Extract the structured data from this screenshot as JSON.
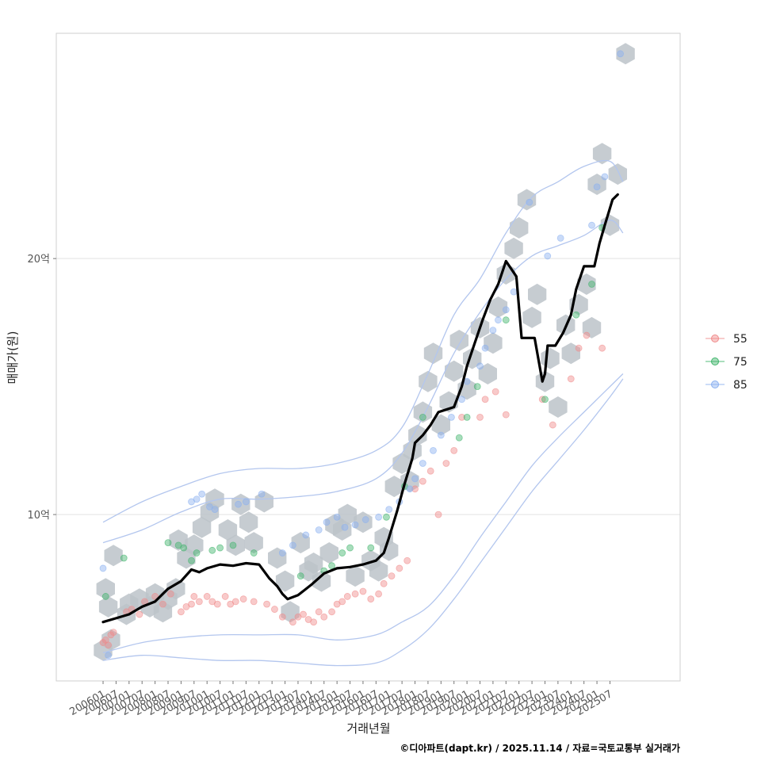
{
  "chart_data": {
    "type": "scatter",
    "title": "",
    "xlabel": "거래년월",
    "ylabel": "매매가(원)",
    "caption": "©디아파트(dapt.kr) / 2025.11.14 / 자료=국토교통부 실거래가",
    "x_tick_labels": [
      "200601",
      "200607",
      "200701",
      "200707",
      "200801",
      "200807",
      "200901",
      "200907",
      "201001",
      "201007",
      "201101",
      "201107",
      "201201",
      "201207",
      "201301",
      "201307",
      "201401",
      "201407",
      "201501",
      "201507",
      "201601",
      "201607",
      "201701",
      "201707",
      "201801",
      "201807",
      "201901",
      "201907",
      "202001",
      "202007",
      "202101",
      "202107",
      "202201",
      "202207",
      "202301",
      "202307",
      "202401",
      "202407",
      "202501",
      "202507"
    ],
    "y_ticks": [
      {
        "value": 10,
        "label": "10억"
      },
      {
        "value": 20,
        "label": "20억"
      }
    ],
    "ylim": [
      3.5,
      28.8
    ],
    "xlim": [
      2004.2,
      2028.2
    ],
    "grid": "horizontal",
    "legend": {
      "position": "right",
      "items": [
        {
          "label": "55",
          "color": "#f08a8a"
        },
        {
          "label": "75",
          "color": "#3fb46a"
        },
        {
          "label": "85",
          "color": "#8ab0f0"
        }
      ]
    },
    "colors": {
      "hex": "#bcc3c9",
      "trend": "#000000",
      "contour": "#b3c6ee",
      "grid": "#e3e3e3",
      "frame": "#cfcfcf"
    },
    "trend_line": {
      "name": "median price",
      "x": [
        2006.0,
        2006.5,
        2007.0,
        2007.5,
        2008.0,
        2008.5,
        2009.0,
        2009.4,
        2009.7,
        2010.0,
        2010.5,
        2011.0,
        2011.5,
        2012.0,
        2012.4,
        2012.7,
        2012.9,
        2013.1,
        2013.5,
        2014.0,
        2014.5,
        2015.0,
        2015.5,
        2016.0,
        2016.5,
        2016.8,
        2017.0,
        2017.3,
        2017.6,
        2017.9,
        2018.0,
        2018.3,
        2018.6,
        2018.9,
        2019.2,
        2019.5,
        2019.8,
        2020.0,
        2020.3,
        2020.6,
        2020.9,
        2021.2,
        2021.5,
        2021.9,
        2022.1,
        2022.3,
        2022.6,
        2022.9,
        2023.0,
        2023.1,
        2023.4,
        2023.7,
        2024.0,
        2024.2,
        2024.5,
        2024.9,
        2025.1,
        2025.3,
        2025.6,
        2025.8
      ],
      "y": [
        5.8,
        5.95,
        6.1,
        6.4,
        6.6,
        7.1,
        7.4,
        7.85,
        7.75,
        7.9,
        8.05,
        8.0,
        8.1,
        8.05,
        7.5,
        7.2,
        6.9,
        6.7,
        6.85,
        7.25,
        7.7,
        7.9,
        7.95,
        8.05,
        8.2,
        8.5,
        9.1,
        10.1,
        11.2,
        12.2,
        12.8,
        13.1,
        13.5,
        14.0,
        14.1,
        14.2,
        15.0,
        15.8,
        16.7,
        17.6,
        18.4,
        19.0,
        19.9,
        19.3,
        16.9,
        16.9,
        16.9,
        15.2,
        15.5,
        16.6,
        16.6,
        17.1,
        17.8,
        18.8,
        19.7,
        19.7,
        20.6,
        21.3,
        22.3,
        22.5
      ]
    },
    "series": [
      {
        "name": "55",
        "color": "#f08a8a",
        "x": [
          2006.0,
          2006.1,
          2006.2,
          2006.3,
          2006.4,
          2006.9,
          2007.1,
          2007.4,
          2007.6,
          2008.0,
          2008.3,
          2008.6,
          2009.0,
          2009.2,
          2009.4,
          2009.5,
          2009.7,
          2010.0,
          2010.2,
          2010.4,
          2010.7,
          2010.9,
          2011.1,
          2011.4,
          2011.8,
          2012.3,
          2012.6,
          2012.9,
          2013.3,
          2013.5,
          2013.7,
          2013.9,
          2014.1,
          2014.3,
          2014.5,
          2014.8,
          2015.0,
          2015.2,
          2015.4,
          2015.7,
          2016.0,
          2016.3,
          2016.6,
          2016.8,
          2017.1,
          2017.4,
          2017.7,
          2018.0,
          2018.3,
          2018.6,
          2018.9,
          2019.2,
          2019.5,
          2019.8,
          2020.5,
          2020.7,
          2021.1,
          2021.5,
          2022.9,
          2023.3,
          2024.0,
          2024.3,
          2024.6,
          2025.2
        ],
        "y": [
          5.0,
          5.1,
          4.9,
          5.3,
          5.4,
          6.2,
          6.3,
          6.1,
          6.6,
          6.8,
          6.5,
          6.9,
          6.2,
          6.4,
          6.5,
          6.8,
          6.6,
          6.8,
          6.6,
          6.5,
          6.8,
          6.5,
          6.6,
          6.7,
          6.6,
          6.5,
          6.3,
          6.0,
          5.8,
          6.0,
          6.1,
          5.9,
          5.8,
          6.2,
          6.0,
          6.2,
          6.5,
          6.6,
          6.8,
          6.9,
          7.0,
          6.7,
          6.9,
          7.3,
          7.6,
          7.9,
          8.2,
          11.0,
          11.3,
          11.7,
          10.0,
          12.0,
          12.5,
          13.8,
          13.8,
          14.5,
          14.8,
          13.9,
          14.5,
          13.5,
          15.3,
          16.5,
          17.0,
          16.5
        ]
      },
      {
        "name": "75",
        "color": "#3fb46a",
        "x": [
          2006.1,
          2006.8,
          2008.5,
          2008.9,
          2009.1,
          2009.4,
          2009.6,
          2010.2,
          2010.5,
          2011.0,
          2011.8,
          2013.6,
          2014.5,
          2014.8,
          2015.2,
          2015.5,
          2016.3,
          2016.9,
          2017.6,
          2018.3,
          2019.7,
          2020.0,
          2020.4,
          2021.5,
          2023.0,
          2024.2,
          2024.8,
          2025.2
        ],
        "y": [
          6.8,
          8.3,
          8.9,
          8.8,
          8.7,
          8.2,
          8.5,
          8.6,
          8.7,
          8.8,
          8.5,
          7.6,
          7.8,
          8.0,
          8.5,
          8.7,
          8.7,
          9.9,
          11.1,
          13.8,
          13.0,
          13.8,
          15.0,
          17.6,
          14.5,
          17.8,
          19.0,
          21.2
        ]
      },
      {
        "name": "85",
        "color": "#8ab0f0",
        "x": [
          2006.0,
          2006.2,
          2009.4,
          2009.6,
          2009.8,
          2010.1,
          2010.3,
          2011.2,
          2011.5,
          2012.1,
          2012.9,
          2013.3,
          2013.8,
          2014.3,
          2014.6,
          2015.0,
          2015.3,
          2015.7,
          2016.1,
          2016.6,
          2017.0,
          2017.4,
          2017.8,
          2018.0,
          2018.3,
          2018.7,
          2019.0,
          2019.4,
          2019.8,
          2020.0,
          2020.5,
          2020.7,
          2021.0,
          2021.2,
          2021.5,
          2021.8,
          2022.4,
          2023.1,
          2023.6,
          2024.8,
          2025.0,
          2025.3,
          2025.9
        ],
        "y": [
          7.9,
          4.5,
          10.5,
          10.6,
          10.8,
          10.3,
          10.2,
          10.4,
          10.5,
          10.8,
          8.5,
          8.8,
          9.2,
          9.4,
          9.7,
          9.9,
          9.5,
          9.6,
          9.8,
          9.9,
          10.2,
          10.5,
          11.0,
          11.4,
          12.0,
          12.5,
          13.1,
          13.8,
          14.5,
          15.2,
          15.8,
          16.5,
          17.2,
          17.6,
          18.0,
          18.7,
          22.2,
          20.1,
          20.8,
          21.3,
          22.8,
          23.2,
          28.0
        ]
      }
    ],
    "hex_bins": {
      "x": [
        2006.0,
        2006.3,
        2006.2,
        2006.1,
        2006.4,
        2006.9,
        2007.0,
        2007.4,
        2007.8,
        2008.0,
        2008.3,
        2008.5,
        2008.8,
        2008.9,
        2009.2,
        2009.5,
        2009.8,
        2010.1,
        2010.3,
        2010.8,
        2011.1,
        2011.3,
        2011.6,
        2011.8,
        2012.2,
        2012.7,
        2013.0,
        2013.2,
        2013.6,
        2013.9,
        2014.1,
        2014.4,
        2014.7,
        2014.9,
        2015.2,
        2015.4,
        2015.7,
        2016.0,
        2016.3,
        2016.6,
        2016.8,
        2017.0,
        2017.2,
        2017.5,
        2017.8,
        2017.9,
        2018.1,
        2018.3,
        2018.5,
        2018.7,
        2019.0,
        2019.3,
        2019.5,
        2019.7,
        2020.0,
        2020.2,
        2020.5,
        2020.8,
        2021.0,
        2021.2,
        2021.5,
        2021.8,
        2022.0,
        2022.3,
        2022.5,
        2022.7,
        2023.0,
        2023.2,
        2023.5,
        2023.8,
        2024.0,
        2024.3,
        2024.6,
        2024.8,
        2025.0,
        2025.2,
        2025.5,
        2025.8,
        2026.1
      ],
      "y": [
        4.7,
        5.1,
        6.4,
        7.1,
        8.4,
        6.1,
        6.5,
        6.7,
        6.4,
        6.9,
        6.2,
        6.7,
        7.1,
        9.0,
        8.3,
        8.8,
        9.5,
        10.1,
        10.6,
        9.4,
        8.8,
        10.4,
        9.7,
        8.9,
        10.5,
        8.3,
        7.4,
        6.2,
        8.9,
        7.8,
        8.1,
        7.4,
        8.5,
        9.6,
        9.4,
        10.0,
        7.6,
        9.7,
        8.2,
        7.8,
        9.1,
        8.6,
        11.1,
        12.0,
        11.3,
        12.5,
        13.1,
        14.0,
        15.2,
        16.3,
        13.5,
        14.4,
        15.6,
        16.8,
        14.9,
        16.1,
        17.3,
        15.5,
        16.7,
        18.1,
        19.4,
        20.4,
        21.2,
        22.3,
        17.7,
        18.6,
        15.2,
        16.1,
        14.2,
        17.4,
        16.3,
        18.2,
        19.0,
        17.3,
        22.9,
        24.1,
        21.3,
        23.3,
        28.0
      ]
    },
    "contours": [
      {
        "x": [
          2006.0,
          2007.5,
          2009.0,
          2010.5,
          2012.0,
          2013.5,
          2015.0,
          2016.5,
          2017.5,
          2018.5,
          2019.5,
          2020.5,
          2021.5,
          2022.5,
          2023.5,
          2024.5,
          2025.5,
          2026.0
        ],
        "y": [
          9.7,
          10.5,
          11.1,
          11.6,
          11.8,
          11.8,
          12.0,
          12.5,
          13.4,
          15.5,
          17.8,
          19.2,
          21.0,
          22.4,
          23.0,
          23.6,
          23.8,
          23.0
        ]
      },
      {
        "x": [
          2006.0,
          2007.5,
          2009.0,
          2010.5,
          2012.0,
          2013.5,
          2015.0,
          2016.5,
          2017.5,
          2018.5,
          2019.5,
          2020.5,
          2021.5,
          2022.5,
          2023.5,
          2024.5,
          2025.5,
          2026.0
        ],
        "y": [
          8.9,
          9.4,
          10.1,
          10.6,
          10.6,
          10.7,
          10.9,
          11.4,
          12.4,
          14.2,
          16.3,
          17.9,
          19.2,
          20.1,
          20.5,
          20.9,
          21.5,
          21.0
        ]
      },
      {
        "x": [
          2006.0,
          2007.5,
          2009.0,
          2010.5,
          2012.0,
          2013.5,
          2015.0,
          2016.5,
          2017.5,
          2018.5,
          2019.5,
          2020.5,
          2021.5,
          2022.5,
          2023.5,
          2024.5,
          2025.5,
          2026.0
        ],
        "y": [
          4.6,
          5.0,
          5.2,
          5.3,
          5.3,
          5.3,
          5.1,
          5.3,
          5.8,
          6.4,
          7.6,
          9.1,
          10.5,
          11.9,
          13.0,
          14.0,
          15.0,
          15.5
        ]
      },
      {
        "x": [
          2006.0,
          2007.5,
          2009.0,
          2010.5,
          2012.0,
          2013.5,
          2015.0,
          2016.5,
          2017.5,
          2018.5,
          2019.5,
          2020.5,
          2021.5,
          2022.5,
          2023.5,
          2024.5,
          2025.5,
          2026.0
        ],
        "y": [
          4.3,
          4.5,
          4.4,
          4.3,
          4.3,
          4.2,
          4.1,
          4.2,
          4.7,
          5.5,
          6.7,
          8.1,
          9.5,
          10.9,
          12.1,
          13.3,
          14.6,
          15.3
        ]
      }
    ]
  }
}
